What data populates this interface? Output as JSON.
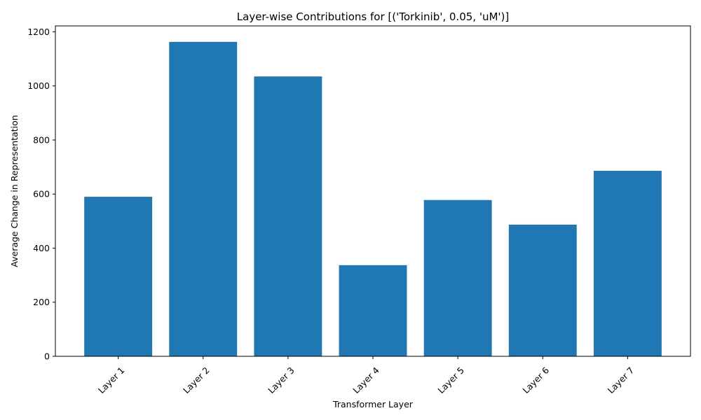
{
  "chart_data": {
    "type": "bar",
    "title": "Layer-wise Contributions for [('Torkinib', 0.05, 'uM')]",
    "xlabel": "Transformer Layer",
    "ylabel": "Average Change in Representation",
    "categories": [
      "Layer 1",
      "Layer 2",
      "Layer 3",
      "Layer 4",
      "Layer 5",
      "Layer 6",
      "Layer 7"
    ],
    "values": [
      590,
      1163,
      1035,
      337,
      578,
      487,
      686
    ],
    "ylim": [
      0,
      1222
    ],
    "yticks": [
      0,
      200,
      400,
      600,
      800,
      1000,
      1200
    ],
    "bar_color": "#1f77b4",
    "grid": false,
    "legend": "none"
  }
}
